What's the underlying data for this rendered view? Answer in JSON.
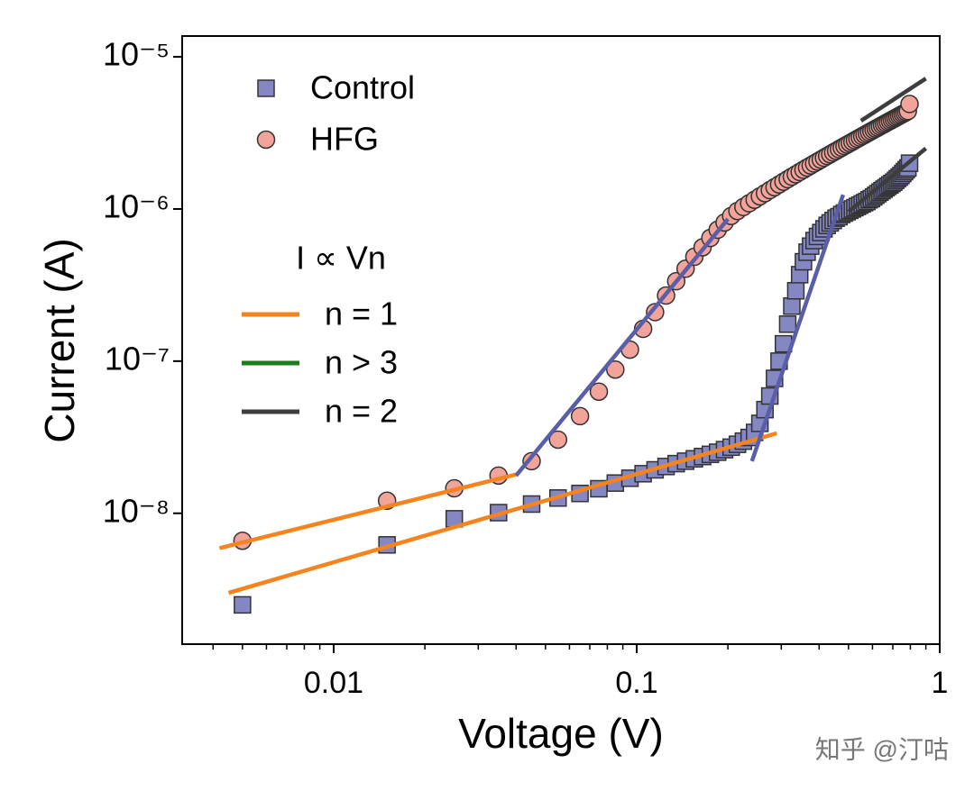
{
  "chart_data": {
    "type": "scatter",
    "xlabel": "Voltage (V)",
    "ylabel": "Current (A)",
    "log_x": true,
    "log_y": true,
    "xlim": [
      0.0031623,
      1
    ],
    "ylim": [
      1.38e-09,
      1.37e-05
    ],
    "xticks": [
      0.01,
      0.1,
      1
    ],
    "xminorticks": [
      0.004,
      0.005,
      0.006,
      0.007,
      0.008,
      0.009,
      0.02,
      0.03,
      0.04,
      0.05,
      0.06,
      0.07,
      0.08,
      0.09,
      0.2,
      0.3,
      0.4,
      0.5,
      0.6,
      0.7,
      0.8,
      0.9
    ],
    "yticks": [
      {
        "value": 1e-08,
        "label": "10⁻⁸"
      },
      {
        "value": 1e-07,
        "label": "10⁻⁷"
      },
      {
        "value": 1e-06,
        "label": "10⁻⁶"
      },
      {
        "value": 1e-05,
        "label": "10⁻⁵"
      }
    ],
    "x": [
      0.005,
      0.015,
      0.025,
      0.035,
      0.045,
      0.055,
      0.065,
      0.075,
      0.085,
      0.095,
      0.105,
      0.115,
      0.125,
      0.135,
      0.145,
      0.155,
      0.165,
      0.175,
      0.185,
      0.195,
      0.205,
      0.215,
      0.225,
      0.235,
      0.245,
      0.255,
      0.265,
      0.275,
      0.285,
      0.295,
      0.305,
      0.315,
      0.325,
      0.335,
      0.345,
      0.355,
      0.365,
      0.375,
      0.385,
      0.395,
      0.405,
      0.415,
      0.425,
      0.435,
      0.445,
      0.455,
      0.465,
      0.475,
      0.485,
      0.495,
      0.505,
      0.515,
      0.525,
      0.535,
      0.545,
      0.555,
      0.565,
      0.575,
      0.585,
      0.595,
      0.605,
      0.615,
      0.625,
      0.635,
      0.645,
      0.655,
      0.665,
      0.675,
      0.685,
      0.695,
      0.705,
      0.715,
      0.725,
      0.735,
      0.745,
      0.755,
      0.765,
      0.775,
      0.785,
      0.795
    ],
    "series": [
      {
        "name": "Control",
        "marker": "square",
        "color": "#8587c2",
        "values": [
          2.5e-09,
          6.2e-09,
          9.2e-09,
          1.01e-08,
          1.15e-08,
          1.26e-08,
          1.35e-08,
          1.45e-08,
          1.58e-08,
          1.7e-08,
          1.82e-08,
          1.93e-08,
          2.03e-08,
          2.12e-08,
          2.2e-08,
          2.28e-08,
          2.36e-08,
          2.44e-08,
          2.52e-08,
          2.62e-08,
          2.72e-08,
          2.84e-08,
          2.98e-08,
          3.15e-08,
          3.4e-08,
          3.9e-08,
          4.8e-08,
          5.9e-08,
          7.7e-08,
          1e-07,
          1.3e-07,
          1.75e-07,
          2.3e-07,
          2.9e-07,
          3.7e-07,
          4.5e-07,
          5.2e-07,
          5.7e-07,
          6.2e-07,
          6.6e-07,
          7e-07,
          7.4e-07,
          7.8e-07,
          8.1e-07,
          8.4e-07,
          8.7e-07,
          8.9e-07,
          9.2e-07,
          9.4e-07,
          9.6e-07,
          9.8e-07,
          1e-06,
          1.02e-06,
          1.04e-06,
          1.06e-06,
          1.08e-06,
          1.1e-06,
          1.12e-06,
          1.15e-06,
          1.17e-06,
          1.2e-06,
          1.23e-06,
          1.26e-06,
          1.29e-06,
          1.32e-06,
          1.35e-06,
          1.38e-06,
          1.41e-06,
          1.44e-06,
          1.47e-06,
          1.5e-06,
          1.54e-06,
          1.58e-06,
          1.62e-06,
          1.66e-06,
          1.71e-06,
          1.76e-06,
          1.81e-06,
          1.86e-06,
          2e-06
        ]
      },
      {
        "name": "HFG",
        "marker": "circle",
        "color": "#f2a39a",
        "values": [
          6.6e-09,
          1.21e-08,
          1.46e-08,
          1.77e-08,
          2.2e-08,
          3.05e-08,
          4.35e-08,
          6.3e-08,
          8.8e-08,
          1.19e-07,
          1.63e-07,
          2.1e-07,
          2.7e-07,
          3.35e-07,
          4.05e-07,
          4.85e-07,
          5.6e-07,
          6.45e-07,
          7.3e-07,
          8.15e-07,
          9e-07,
          9.7e-07,
          1.03e-06,
          1.09e-06,
          1.15e-06,
          1.21e-06,
          1.27e-06,
          1.33e-06,
          1.39e-06,
          1.45e-06,
          1.51e-06,
          1.57e-06,
          1.63e-06,
          1.69e-06,
          1.75e-06,
          1.81e-06,
          1.87e-06,
          1.93e-06,
          1.99e-06,
          2.05e-06,
          2.11e-06,
          2.17e-06,
          2.23e-06,
          2.29e-06,
          2.35e-06,
          2.41e-06,
          2.47e-06,
          2.53e-06,
          2.59e-06,
          2.65e-06,
          2.71e-06,
          2.77e-06,
          2.83e-06,
          2.89e-06,
          2.95e-06,
          3.01e-06,
          3.07e-06,
          3.13e-06,
          3.19e-06,
          3.25e-06,
          3.31e-06,
          3.37e-06,
          3.43e-06,
          3.49e-06,
          3.55e-06,
          3.61e-06,
          3.67e-06,
          3.73e-06,
          3.79e-06,
          3.85e-06,
          3.91e-06,
          3.97e-06,
          4.03e-06,
          4.09e-06,
          4.15e-06,
          4.21e-06,
          4.27e-06,
          4.33e-06,
          4.4e-06,
          4.9e-06
        ]
      }
    ],
    "fits": [
      {
        "color": "#f5841f",
        "x": [
          0.0042,
          0.04
        ],
        "values": [
          5.9e-09,
          1.8e-08
        ]
      },
      {
        "color": "#f5841f",
        "x": [
          0.0045,
          0.29
        ],
        "values": [
          3e-09,
          3.36e-08
        ]
      },
      {
        "color": "#5a5da8",
        "x": [
          0.04,
          0.2
        ],
        "values": [
          1.77e-08,
          8.6e-07
        ]
      },
      {
        "color": "#5a5da8",
        "x": [
          0.24,
          0.48
        ],
        "values": [
          2.2e-08,
          1.24e-06
        ]
      },
      {
        "color": "#3d3d3d",
        "x": [
          0.55,
          0.9
        ],
        "values": [
          3.8e-06,
          7.2e-06
        ]
      },
      {
        "color": "#3d3d3d",
        "x": [
          0.5,
          0.9
        ],
        "values": [
          9.6e-07,
          2.5e-06
        ]
      }
    ],
    "fit_legend_title": "I ∝ Vn",
    "fit_legend": [
      {
        "name": "n = 1",
        "color": "#f5841f"
      },
      {
        "name": "n > 3",
        "color": "#1a7f1a"
      },
      {
        "name": "n = 2",
        "color": "#3d3d3d"
      }
    ],
    "watermark": "知乎 @汀咕"
  }
}
